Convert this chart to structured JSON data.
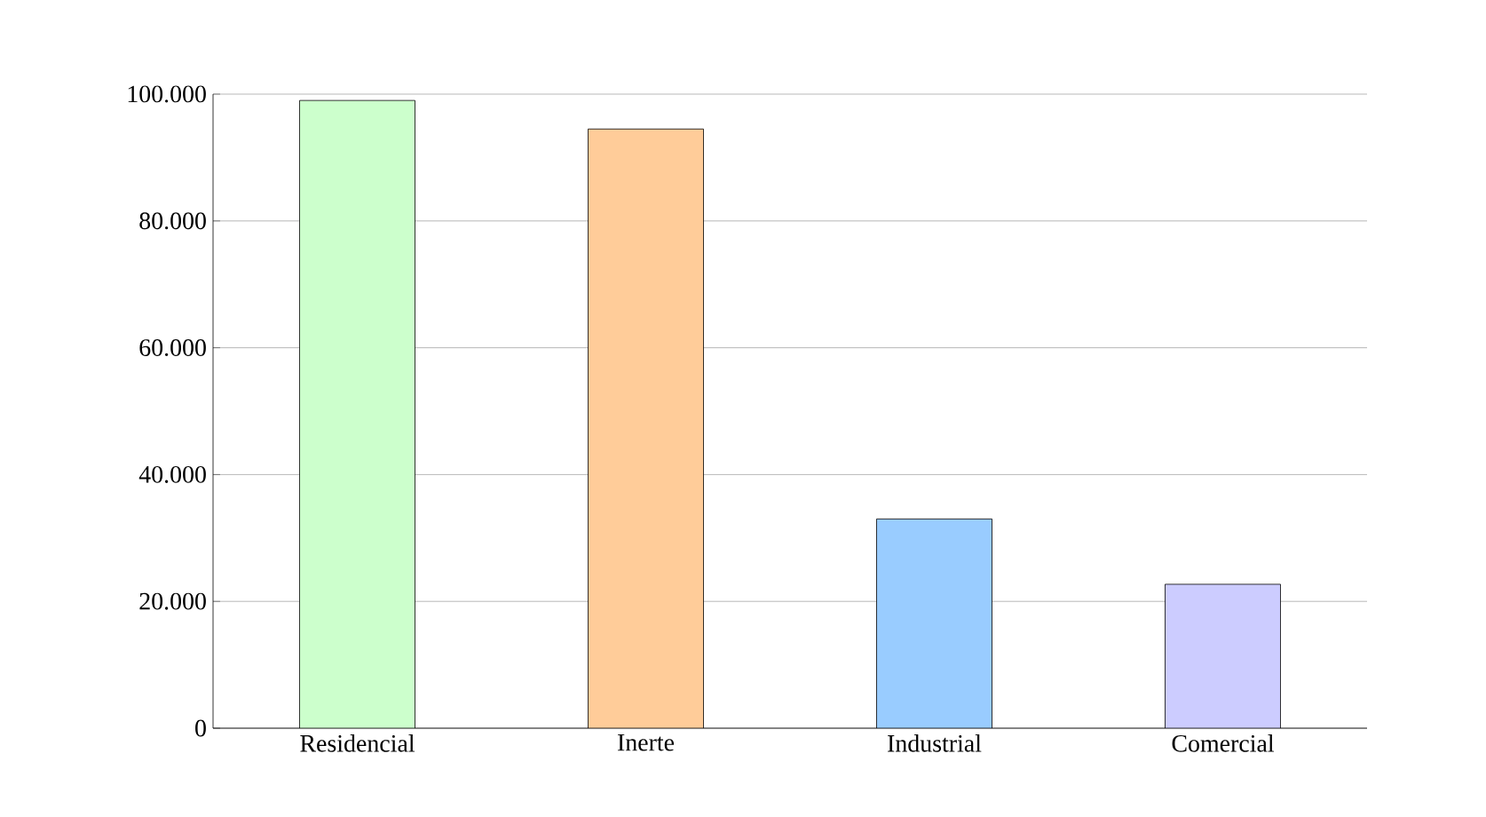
{
  "chart_data": {
    "type": "bar",
    "categories": [
      "Residencial",
      "Inerte",
      "Industrial",
      "Comercial"
    ],
    "values": [
      99000,
      94500,
      33000,
      22700
    ],
    "colors": [
      "#ccffcc",
      "#ffcc99",
      "#99ccff",
      "#ccccff"
    ],
    "ylim": [
      0,
      100000
    ],
    "yticks": [
      {
        "value": 0,
        "label": "0"
      },
      {
        "value": 20000,
        "label": "20.000"
      },
      {
        "value": 40000,
        "label": "40.000"
      },
      {
        "value": 60000,
        "label": "60.000"
      },
      {
        "value": 80000,
        "label": "80.000"
      },
      {
        "value": 100000,
        "label": "100.000"
      }
    ],
    "grid": "y"
  }
}
